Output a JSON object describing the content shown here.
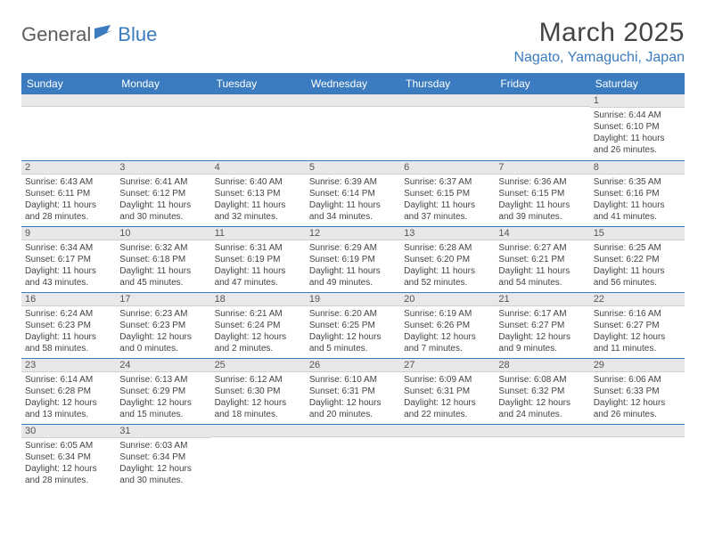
{
  "logo": {
    "text1": "General",
    "text2": "Blue"
  },
  "title": "March 2025",
  "location": "Nagato, Yamaguchi, Japan",
  "colors": {
    "header_bg": "#3b7bbf",
    "header_text": "#ffffff",
    "daynum_bg": "#e8e8e8",
    "border": "#3b7bbf",
    "title_color": "#444444",
    "location_color": "#3b7bbf"
  },
  "weekdays": [
    "Sunday",
    "Monday",
    "Tuesday",
    "Wednesday",
    "Thursday",
    "Friday",
    "Saturday"
  ],
  "weeks": [
    [
      null,
      null,
      null,
      null,
      null,
      null,
      {
        "n": "1",
        "sr": "6:44 AM",
        "ss": "6:10 PM",
        "dl": "11 hours and 26 minutes."
      }
    ],
    [
      {
        "n": "2",
        "sr": "6:43 AM",
        "ss": "6:11 PM",
        "dl": "11 hours and 28 minutes."
      },
      {
        "n": "3",
        "sr": "6:41 AM",
        "ss": "6:12 PM",
        "dl": "11 hours and 30 minutes."
      },
      {
        "n": "4",
        "sr": "6:40 AM",
        "ss": "6:13 PM",
        "dl": "11 hours and 32 minutes."
      },
      {
        "n": "5",
        "sr": "6:39 AM",
        "ss": "6:14 PM",
        "dl": "11 hours and 34 minutes."
      },
      {
        "n": "6",
        "sr": "6:37 AM",
        "ss": "6:15 PM",
        "dl": "11 hours and 37 minutes."
      },
      {
        "n": "7",
        "sr": "6:36 AM",
        "ss": "6:15 PM",
        "dl": "11 hours and 39 minutes."
      },
      {
        "n": "8",
        "sr": "6:35 AM",
        "ss": "6:16 PM",
        "dl": "11 hours and 41 minutes."
      }
    ],
    [
      {
        "n": "9",
        "sr": "6:34 AM",
        "ss": "6:17 PM",
        "dl": "11 hours and 43 minutes."
      },
      {
        "n": "10",
        "sr": "6:32 AM",
        "ss": "6:18 PM",
        "dl": "11 hours and 45 minutes."
      },
      {
        "n": "11",
        "sr": "6:31 AM",
        "ss": "6:19 PM",
        "dl": "11 hours and 47 minutes."
      },
      {
        "n": "12",
        "sr": "6:29 AM",
        "ss": "6:19 PM",
        "dl": "11 hours and 49 minutes."
      },
      {
        "n": "13",
        "sr": "6:28 AM",
        "ss": "6:20 PM",
        "dl": "11 hours and 52 minutes."
      },
      {
        "n": "14",
        "sr": "6:27 AM",
        "ss": "6:21 PM",
        "dl": "11 hours and 54 minutes."
      },
      {
        "n": "15",
        "sr": "6:25 AM",
        "ss": "6:22 PM",
        "dl": "11 hours and 56 minutes."
      }
    ],
    [
      {
        "n": "16",
        "sr": "6:24 AM",
        "ss": "6:23 PM",
        "dl": "11 hours and 58 minutes."
      },
      {
        "n": "17",
        "sr": "6:23 AM",
        "ss": "6:23 PM",
        "dl": "12 hours and 0 minutes."
      },
      {
        "n": "18",
        "sr": "6:21 AM",
        "ss": "6:24 PM",
        "dl": "12 hours and 2 minutes."
      },
      {
        "n": "19",
        "sr": "6:20 AM",
        "ss": "6:25 PM",
        "dl": "12 hours and 5 minutes."
      },
      {
        "n": "20",
        "sr": "6:19 AM",
        "ss": "6:26 PM",
        "dl": "12 hours and 7 minutes."
      },
      {
        "n": "21",
        "sr": "6:17 AM",
        "ss": "6:27 PM",
        "dl": "12 hours and 9 minutes."
      },
      {
        "n": "22",
        "sr": "6:16 AM",
        "ss": "6:27 PM",
        "dl": "12 hours and 11 minutes."
      }
    ],
    [
      {
        "n": "23",
        "sr": "6:14 AM",
        "ss": "6:28 PM",
        "dl": "12 hours and 13 minutes."
      },
      {
        "n": "24",
        "sr": "6:13 AM",
        "ss": "6:29 PM",
        "dl": "12 hours and 15 minutes."
      },
      {
        "n": "25",
        "sr": "6:12 AM",
        "ss": "6:30 PM",
        "dl": "12 hours and 18 minutes."
      },
      {
        "n": "26",
        "sr": "6:10 AM",
        "ss": "6:31 PM",
        "dl": "12 hours and 20 minutes."
      },
      {
        "n": "27",
        "sr": "6:09 AM",
        "ss": "6:31 PM",
        "dl": "12 hours and 22 minutes."
      },
      {
        "n": "28",
        "sr": "6:08 AM",
        "ss": "6:32 PM",
        "dl": "12 hours and 24 minutes."
      },
      {
        "n": "29",
        "sr": "6:06 AM",
        "ss": "6:33 PM",
        "dl": "12 hours and 26 minutes."
      }
    ],
    [
      {
        "n": "30",
        "sr": "6:05 AM",
        "ss": "6:34 PM",
        "dl": "12 hours and 28 minutes."
      },
      {
        "n": "31",
        "sr": "6:03 AM",
        "ss": "6:34 PM",
        "dl": "12 hours and 30 minutes."
      },
      null,
      null,
      null,
      null,
      null
    ]
  ],
  "labels": {
    "sunrise": "Sunrise:",
    "sunset": "Sunset:",
    "daylight": "Daylight:"
  }
}
